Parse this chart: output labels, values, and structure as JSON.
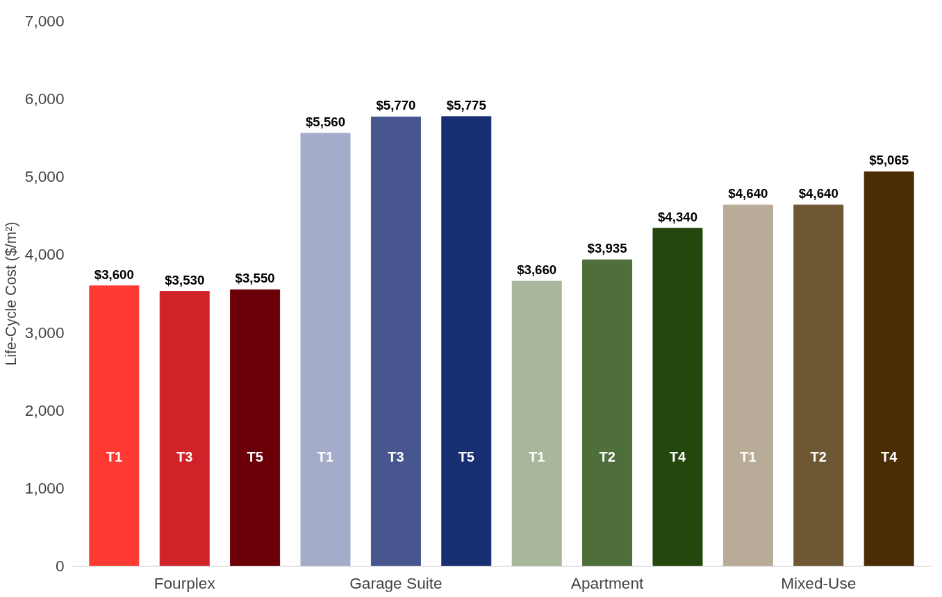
{
  "chart_data": {
    "type": "bar",
    "ylabel": "Life-Cycle Cost ($/m²)",
    "categories": [
      "T1",
      "T3",
      "T5",
      "T1",
      "T3",
      "T5",
      "T1",
      "T2",
      "T4",
      "T1",
      "T2",
      "T4"
    ],
    "values": [
      3600,
      3530,
      3550,
      5560,
      5770,
      5775,
      3660,
      3935,
      4340,
      4640,
      4640,
      5065
    ],
    "value_labels": [
      "$3,600",
      "$3,530",
      "$3,550",
      "$5,560",
      "$5,770",
      "$5,775",
      "$3,660",
      "$3,935",
      "$4,340",
      "$4,640",
      "$4,640",
      "$5,065"
    ],
    "colors": [
      "#ff3a33",
      "#d02229",
      "#6b0008",
      "#a3acc9",
      "#47568f",
      "#182f74",
      "#a8b69b",
      "#4e6e3b",
      "#23470c",
      "#b8ab97",
      "#6e5733",
      "#4b2c04"
    ],
    "annotations": [
      "Fourplex",
      "Garage Suite",
      "Apartment",
      "Mixed-Use"
    ],
    "ylim": [
      0,
      7000
    ],
    "yticks": [
      0,
      {
        "value": 1000,
        "label": "1,000"
      },
      {
        "value": 2000,
        "label": "2,000"
      },
      {
        "value": 3000,
        "label": "3,000"
      },
      {
        "value": 4000,
        "label": "4,000"
      },
      {
        "value": 5000,
        "label": "5,000"
      },
      {
        "value": 6000,
        "label": "6,000"
      },
      {
        "value": 7000,
        "label": "7,000"
      }
    ],
    "grid": false
  }
}
